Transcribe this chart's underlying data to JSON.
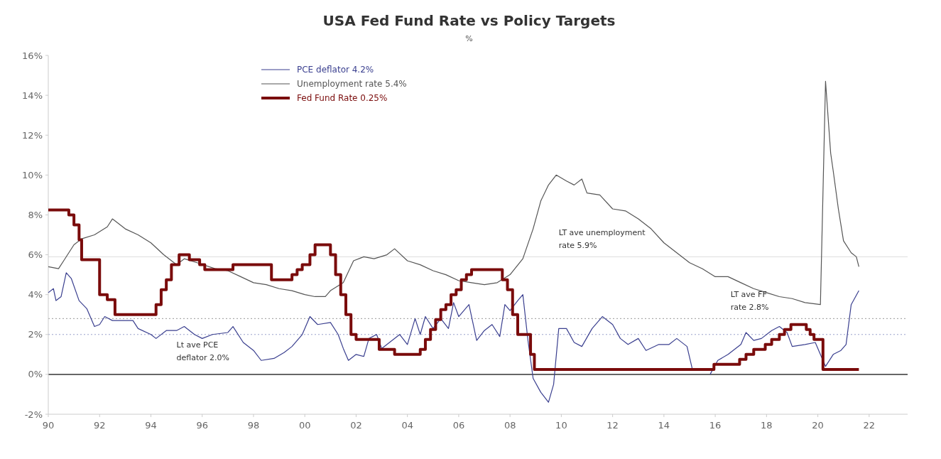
{
  "chart_data": {
    "type": "line",
    "title": "USA Fed Fund Rate vs Policy Targets",
    "subtitle": "%",
    "legend": "top left",
    "grid": false,
    "xlim": [
      1990,
      2023.5
    ],
    "xticks": [
      {
        "value": 1990,
        "label": "90"
      },
      {
        "value": 1992,
        "label": "92"
      },
      {
        "value": 1994,
        "label": "94"
      },
      {
        "value": 1996,
        "label": "96"
      },
      {
        "value": 1998,
        "label": "98"
      },
      {
        "value": 2000,
        "label": "00"
      },
      {
        "value": 2002,
        "label": "02"
      },
      {
        "value": 2004,
        "label": "04"
      },
      {
        "value": 2006,
        "label": "06"
      },
      {
        "value": 2008,
        "label": "08"
      },
      {
        "value": 2010,
        "label": "10"
      },
      {
        "value": 2012,
        "label": "12"
      },
      {
        "value": 2014,
        "label": "14"
      },
      {
        "value": 2016,
        "label": "16"
      },
      {
        "value": 2018,
        "label": "18"
      },
      {
        "value": 2020,
        "label": "20"
      },
      {
        "value": 2022,
        "label": "22"
      }
    ],
    "ylim": [
      -2,
      16
    ],
    "yticks": [
      {
        "value": -2,
        "label": "-2%"
      },
      {
        "value": 0,
        "label": "0%"
      },
      {
        "value": 2,
        "label": "2%"
      },
      {
        "value": 4,
        "label": "4%"
      },
      {
        "value": 6,
        "label": "6%"
      },
      {
        "value": 8,
        "label": "8%"
      },
      {
        "value": 10,
        "label": "10%"
      },
      {
        "value": 12,
        "label": "12%"
      },
      {
        "value": 14,
        "label": "14%"
      },
      {
        "value": 16,
        "label": "16%"
      }
    ],
    "series": [
      {
        "name": "PCE deflator 4.2%",
        "color": "#3a3f8f",
        "x": [
          1990,
          1990.2,
          1990.3,
          1990.5,
          1990.7,
          1990.9,
          1991.2,
          1991.5,
          1991.8,
          1992,
          1992.2,
          1992.5,
          1993,
          1993.3,
          1993.5,
          1994,
          1994.2,
          1994.6,
          1995,
          1995.3,
          1995.7,
          1996,
          1996.4,
          1997,
          1997.2,
          1997.6,
          1998,
          1998.3,
          1998.8,
          1999.2,
          1999.5,
          1999.9,
          2000.2,
          2000.5,
          2001,
          2001.3,
          2001.5,
          2001.7,
          2002,
          2002.3,
          2002.5,
          2002.8,
          2003,
          2003.3,
          2003.7,
          2004,
          2004.3,
          2004.5,
          2004.7,
          2005,
          2005.3,
          2005.6,
          2005.8,
          2006,
          2006.4,
          2006.7,
          2007,
          2007.3,
          2007.6,
          2007.8,
          2008,
          2008.3,
          2008.5,
          2008.7,
          2008.9,
          2009.2,
          2009.5,
          2009.7,
          2009.9,
          2010.2,
          2010.5,
          2010.8,
          2011.2,
          2011.6,
          2012,
          2012.3,
          2012.6,
          2013,
          2013.3,
          2013.8,
          2014.2,
          2014.5,
          2014.9,
          2015.1,
          2015.5,
          2015.8,
          2016.1,
          2016.5,
          2017,
          2017.2,
          2017.5,
          2017.8,
          2018.2,
          2018.5,
          2018.8,
          2019,
          2019.5,
          2019.9,
          2020.3,
          2020.6,
          2020.9,
          2021.1,
          2021.3,
          2021.6
        ],
        "values": [
          4.1,
          4.3,
          3.7,
          3.9,
          5.1,
          4.8,
          3.7,
          3.3,
          2.4,
          2.5,
          2.9,
          2.7,
          2.7,
          2.7,
          2.3,
          2.0,
          1.8,
          2.2,
          2.2,
          2.4,
          2.0,
          1.8,
          2.0,
          2.1,
          2.4,
          1.6,
          1.2,
          0.7,
          0.8,
          1.1,
          1.4,
          2.0,
          2.9,
          2.5,
          2.6,
          2.0,
          1.3,
          0.7,
          1.0,
          0.9,
          1.8,
          2.0,
          1.3,
          1.6,
          2.0,
          1.5,
          2.8,
          2.0,
          2.9,
          2.3,
          2.8,
          2.3,
          3.6,
          2.9,
          3.5,
          1.7,
          2.2,
          2.5,
          1.9,
          3.5,
          3.2,
          3.7,
          4.0,
          1.7,
          -0.2,
          -0.9,
          -1.4,
          -0.5,
          2.3,
          2.3,
          1.6,
          1.4,
          2.3,
          2.9,
          2.5,
          1.8,
          1.5,
          1.8,
          1.2,
          1.5,
          1.5,
          1.8,
          1.4,
          0.3,
          null,
          0.0,
          0.7,
          1.0,
          1.5,
          2.1,
          1.7,
          1.8,
          2.2,
          2.4,
          2.1,
          1.4,
          1.5,
          1.6,
          0.4,
          1.0,
          1.2,
          1.5,
          3.5,
          4.2
        ]
      },
      {
        "name": "Unemployment rate 5.4%",
        "color": "#555555",
        "x": [
          1990,
          1990.4,
          1990.6,
          1991,
          1991.3,
          1991.8,
          1992.3,
          1992.5,
          1993,
          1993.5,
          1994,
          1994.5,
          1995,
          1995.3,
          1995.8,
          1996.5,
          1997,
          1997.5,
          1998,
          1998.5,
          1999,
          1999.5,
          2000,
          2000.4,
          2000.8,
          2001,
          2001.5,
          2001.9,
          2002.3,
          2002.7,
          2003.2,
          2003.5,
          2004,
          2004.5,
          2005,
          2005.5,
          2006,
          2006.5,
          2007,
          2007.5,
          2008,
          2008.5,
          2008.9,
          2009.2,
          2009.5,
          2009.8,
          2010.2,
          2010.5,
          2010.8,
          2011,
          2011.5,
          2012,
          2012.5,
          2013,
          2013.5,
          2014,
          2014.5,
          2015,
          2015.5,
          2016,
          2016.5,
          2017,
          2017.5,
          2018,
          2018.5,
          2019,
          2019.5,
          2020.1,
          2020.3,
          2020.5,
          2020.6,
          2020.8,
          2021,
          2021.3,
          2021.5,
          2021.6
        ],
        "values": [
          5.4,
          5.3,
          5.7,
          6.5,
          6.8,
          7.0,
          7.4,
          7.8,
          7.3,
          7.0,
          6.6,
          6.0,
          5.5,
          5.8,
          5.6,
          5.3,
          5.2,
          4.9,
          4.6,
          4.5,
          4.3,
          4.2,
          4.0,
          3.9,
          3.9,
          4.2,
          4.6,
          5.7,
          5.9,
          5.8,
          6.0,
          6.3,
          5.7,
          5.5,
          5.2,
          5.0,
          4.7,
          4.6,
          4.5,
          4.6,
          5.0,
          5.8,
          7.3,
          8.7,
          9.5,
          10.0,
          9.7,
          9.5,
          9.8,
          9.1,
          9.0,
          8.3,
          8.2,
          7.8,
          7.3,
          6.6,
          6.1,
          5.6,
          5.3,
          4.9,
          4.9,
          4.6,
          4.3,
          4.1,
          3.9,
          3.8,
          3.6,
          3.5,
          14.7,
          11.1,
          10.2,
          8.3,
          6.7,
          6.1,
          5.9,
          5.4
        ]
      },
      {
        "name": "Fed Fund Rate 0.25%",
        "type": "step",
        "color": "#7a0b0b",
        "x": [
          1990,
          1990.8,
          1991,
          1991.2,
          1991.3,
          1991.7,
          1992,
          1992.3,
          1992.6,
          1994.1,
          1994.2,
          1994.4,
          1994.6,
          1994.8,
          1995.1,
          1995.5,
          1995.9,
          1996.1,
          1997.2,
          1998.7,
          1999.5,
          1999.7,
          1999.9,
          2000.2,
          2000.4,
          2001,
          2001.2,
          2001.4,
          2001.6,
          2001.8,
          2002,
          2002.9,
          2003.5,
          2004.5,
          2004.7,
          2004.9,
          2005.1,
          2005.3,
          2005.5,
          2005.7,
          2005.9,
          2006.1,
          2006.3,
          2006.5,
          2007.6,
          2007.7,
          2007.9,
          2008.1,
          2008.3,
          2008.8,
          2008.95,
          2015.95,
          2016.95,
          2017.2,
          2017.5,
          2017.95,
          2018.2,
          2018.5,
          2018.7,
          2018.95,
          2019.55,
          2019.7,
          2019.85,
          2020.2,
          2021.6
        ],
        "values": [
          8.25,
          8.0,
          7.5,
          6.75,
          5.75,
          5.75,
          4.0,
          3.75,
          3.0,
          3.0,
          3.5,
          4.25,
          4.75,
          5.5,
          6.0,
          5.75,
          5.5,
          5.25,
          5.5,
          4.75,
          5.0,
          5.25,
          5.5,
          6.0,
          6.5,
          6.0,
          5.0,
          4.0,
          3.0,
          2.0,
          1.75,
          1.25,
          1.0,
          1.25,
          1.75,
          2.25,
          2.75,
          3.25,
          3.5,
          4.0,
          4.25,
          4.75,
          5.0,
          5.25,
          5.25,
          4.75,
          4.25,
          3.0,
          2.0,
          1.0,
          0.25,
          0.5,
          0.75,
          1.0,
          1.25,
          1.5,
          1.75,
          2.0,
          2.25,
          2.5,
          2.25,
          2.0,
          1.75,
          0.25,
          0.25
        ]
      }
    ],
    "ref_lines": [
      {
        "axis": "y",
        "value": 0,
        "color": "#333333",
        "line_style": "solid"
      },
      {
        "axis": "y",
        "value": 5.9,
        "color": "#dddddd",
        "line_style": "solid"
      },
      {
        "axis": "y",
        "value": 2.8,
        "color": "#999999",
        "line_style": "dotted"
      },
      {
        "axis": "y",
        "value": 2.0,
        "color": "#99a0cc",
        "line_style": "dotted"
      }
    ],
    "annotations": [
      {
        "text": "LT ave unemployment\nrate 5.9%",
        "x": 2009.9,
        "y": 5.9
      },
      {
        "text": "LT ave FF\nrate 2.8%",
        "x": 2016.6,
        "y": 2.8
      },
      {
        "text": "Lt ave PCE\ndeflator 2.0%",
        "x": 1995.0,
        "y": 2.0
      }
    ]
  }
}
